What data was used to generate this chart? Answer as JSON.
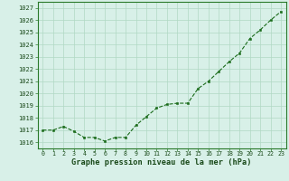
{
  "x": [
    0,
    1,
    2,
    3,
    4,
    5,
    6,
    7,
    8,
    9,
    10,
    11,
    12,
    13,
    14,
    15,
    16,
    17,
    18,
    19,
    20,
    21,
    22,
    23
  ],
  "y": [
    1017.0,
    1017.0,
    1017.3,
    1016.9,
    1016.4,
    1016.4,
    1016.1,
    1016.4,
    1016.4,
    1017.4,
    1018.1,
    1018.8,
    1019.1,
    1019.2,
    1019.2,
    1020.4,
    1021.0,
    1021.8,
    1022.6,
    1023.3,
    1024.5,
    1025.2,
    1026.0,
    1026.7
  ],
  "line_color": "#1a6b1a",
  "marker_color": "#1a6b1a",
  "bg_color": "#d8f0e8",
  "grid_color": "#b0d8c4",
  "border_color": "#2a7a2a",
  "xlabel": "Graphe pression niveau de la mer (hPa)",
  "ylim_min": 1015.5,
  "ylim_max": 1027.5,
  "yticks": [
    1016,
    1017,
    1018,
    1019,
    1020,
    1021,
    1022,
    1023,
    1024,
    1025,
    1026,
    1027
  ],
  "xtick_fontsize": 4.8,
  "ytick_fontsize": 5.0,
  "xlabel_fontsize": 6.2,
  "line_width": 0.8,
  "marker_size": 2.0
}
